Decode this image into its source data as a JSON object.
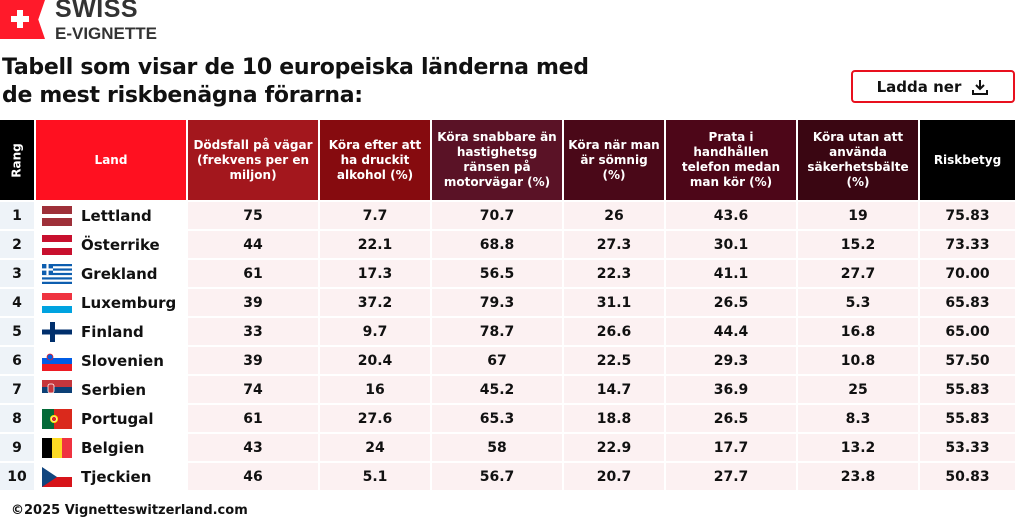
{
  "brand": {
    "line1": "SWISS",
    "line2": "E-VIGNETTE"
  },
  "title": "Tabell som visar de 10 europeiska länderna med de mest riskbenägna förarna:",
  "download": {
    "label": "Ladda ner",
    "icon": "download-icon"
  },
  "colors": {
    "rang": "#000000",
    "land": "#ff1020",
    "c2": "#a3171d",
    "c3": "#860b0f",
    "c4": "#5a1226",
    "c5": "#4a0818",
    "c6": "#4d0618",
    "c7": "#3a0612",
    "c8": "#000000",
    "accent": "#e8101e"
  },
  "headers": [
    "Rang",
    "Land",
    "Dödsfall på vägar (frekvens per en miljon)",
    "Köra efter att ha druckit alkohol (%)",
    "Köra snabbare än hastighetsg ränsen på motorvägar (%)",
    "Köra när man är sömnig (%)",
    "Prata i handhållen telefon medan man kör (%)",
    "Köra utan att använda säkerhetsbälte (%)",
    "Riskbetyg"
  ],
  "rows": [
    {
      "rank": "1",
      "country": "Lettland",
      "flag": "latvia",
      "deaths": "75",
      "alcohol": "7.7",
      "speeding": "70.7",
      "sleepy": "26",
      "phone": "43.6",
      "seatbelt": "19",
      "score": "75.83"
    },
    {
      "rank": "2",
      "country": "Österrike",
      "flag": "austria",
      "deaths": "44",
      "alcohol": "22.1",
      "speeding": "68.8",
      "sleepy": "27.3",
      "phone": "30.1",
      "seatbelt": "15.2",
      "score": "73.33"
    },
    {
      "rank": "3",
      "country": "Grekland",
      "flag": "greece",
      "deaths": "61",
      "alcohol": "17.3",
      "speeding": "56.5",
      "sleepy": "22.3",
      "phone": "41.1",
      "seatbelt": "27.7",
      "score": "70.00"
    },
    {
      "rank": "4",
      "country": "Luxemburg",
      "flag": "luxembourg",
      "deaths": "39",
      "alcohol": "37.2",
      "speeding": "79.3",
      "sleepy": "31.1",
      "phone": "26.5",
      "seatbelt": "5.3",
      "score": "65.83"
    },
    {
      "rank": "5",
      "country": "Finland",
      "flag": "finland",
      "deaths": "33",
      "alcohol": "9.7",
      "speeding": "78.7",
      "sleepy": "26.6",
      "phone": "44.4",
      "seatbelt": "16.8",
      "score": "65.00"
    },
    {
      "rank": "6",
      "country": "Slovenien",
      "flag": "slovenia",
      "deaths": "39",
      "alcohol": "20.4",
      "speeding": "67",
      "sleepy": "22.5",
      "phone": "29.3",
      "seatbelt": "10.8",
      "score": "57.50"
    },
    {
      "rank": "7",
      "country": "Serbien",
      "flag": "serbia",
      "deaths": "74",
      "alcohol": "16",
      "speeding": "45.2",
      "sleepy": "14.7",
      "phone": "36.9",
      "seatbelt": "25",
      "score": "55.83"
    },
    {
      "rank": "8",
      "country": "Portugal",
      "flag": "portugal",
      "deaths": "61",
      "alcohol": "27.6",
      "speeding": "65.3",
      "sleepy": "18.8",
      "phone": "26.5",
      "seatbelt": "8.3",
      "score": "55.83"
    },
    {
      "rank": "9",
      "country": "Belgien",
      "flag": "belgium",
      "deaths": "43",
      "alcohol": "24",
      "speeding": "58",
      "sleepy": "22.9",
      "phone": "17.7",
      "seatbelt": "13.2",
      "score": "53.33"
    },
    {
      "rank": "10",
      "country": "Tjeckien",
      "flag": "czechia",
      "deaths": "46",
      "alcohol": "5.1",
      "speeding": "56.7",
      "sleepy": "20.7",
      "phone": "27.7",
      "seatbelt": "23.8",
      "score": "50.83"
    }
  ],
  "footer": "©2025 Vignetteswitzerland.com"
}
